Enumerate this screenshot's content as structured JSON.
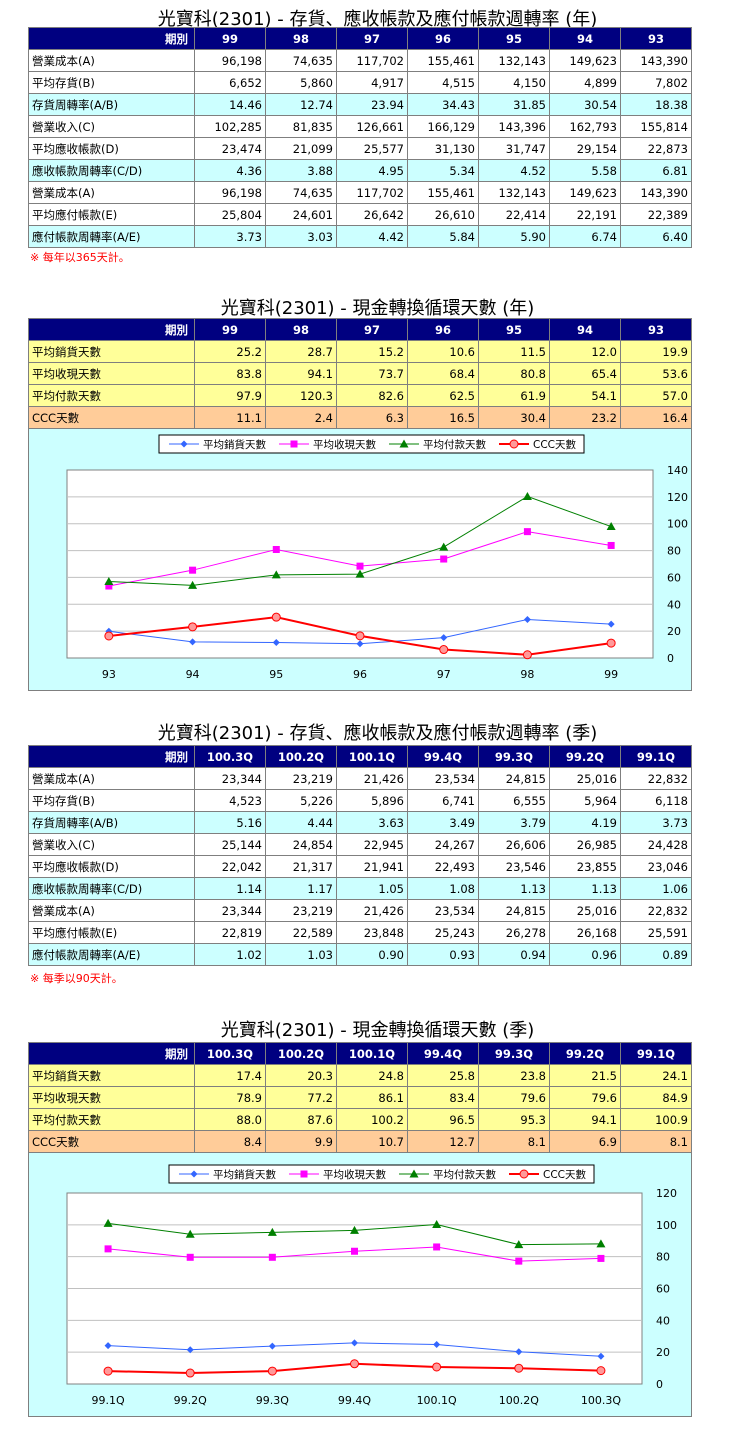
{
  "sections": [
    {
      "title": "光寶科(2301) -  存貨、應收帳款及應付帳款週轉率 (年)",
      "header": [
        "期別",
        "99",
        "98",
        "97",
        "96",
        "95",
        "94",
        "93"
      ],
      "rows": [
        {
          "label": "營業成本(A)",
          "values": [
            "96,198",
            "74,635",
            "117,702",
            "155,461",
            "132,143",
            "149,623",
            "143,390"
          ],
          "color": "white"
        },
        {
          "label": "平均存貨(B)",
          "values": [
            "6,652",
            "5,860",
            "4,917",
            "4,515",
            "4,150",
            "4,899",
            "7,802"
          ],
          "color": "white"
        },
        {
          "label": "存貨周轉率(A/B)",
          "values": [
            "14.46",
            "12.74",
            "23.94",
            "34.43",
            "31.85",
            "30.54",
            "18.38"
          ],
          "color": "cyan"
        },
        {
          "label": "營業收入(C)",
          "values": [
            "102,285",
            "81,835",
            "126,661",
            "166,129",
            "143,396",
            "162,793",
            "155,814"
          ],
          "color": "white"
        },
        {
          "label": "平均應收帳款(D)",
          "values": [
            "23,474",
            "21,099",
            "25,577",
            "31,130",
            "31,747",
            "29,154",
            "22,873"
          ],
          "color": "white"
        },
        {
          "label": "應收帳款周轉率(C/D)",
          "values": [
            "4.36",
            "3.88",
            "4.95",
            "5.34",
            "4.52",
            "5.58",
            "6.81"
          ],
          "color": "cyan"
        },
        {
          "label": "營業成本(A)",
          "values": [
            "96,198",
            "74,635",
            "117,702",
            "155,461",
            "132,143",
            "149,623",
            "143,390"
          ],
          "color": "white"
        },
        {
          "label": "平均應付帳款(E)",
          "values": [
            "25,804",
            "24,601",
            "26,642",
            "26,610",
            "22,414",
            "22,191",
            "22,389"
          ],
          "color": "white"
        },
        {
          "label": "應付帳款周轉率(A/E)",
          "values": [
            "3.73",
            "3.03",
            "4.42",
            "5.84",
            "5.90",
            "6.74",
            "6.40"
          ],
          "color": "cyan"
        }
      ],
      "note": "※ 每年以365天計。"
    },
    {
      "title": "光寶科(2301) -  現金轉換循環天數 (年)",
      "header": [
        "期別",
        "99",
        "98",
        "97",
        "96",
        "95",
        "94",
        "93"
      ],
      "rows": [
        {
          "label": "平均銷貨天數",
          "values": [
            "25.2",
            "28.7",
            "15.2",
            "10.6",
            "11.5",
            "12.0",
            "19.9"
          ],
          "color": "yellow"
        },
        {
          "label": "平均收現天數",
          "values": [
            "83.8",
            "94.1",
            "73.7",
            "68.4",
            "80.8",
            "65.4",
            "53.6"
          ],
          "color": "yellow"
        },
        {
          "label": "平均付款天數",
          "values": [
            "97.9",
            "120.3",
            "82.6",
            "62.5",
            "61.9",
            "54.1",
            "57.0"
          ],
          "color": "yellow"
        },
        {
          "label": "CCC天數",
          "values": [
            "11.1",
            "2.4",
            "6.3",
            "16.5",
            "30.4",
            "23.2",
            "16.4"
          ],
          "color": "orange"
        }
      ]
    },
    {
      "title": "光寶科(2301) -  存貨、應收帳款及應付帳款週轉率 (季)",
      "header": [
        "期別",
        "100.3Q",
        "100.2Q",
        "100.1Q",
        "99.4Q",
        "99.3Q",
        "99.2Q",
        "99.1Q"
      ],
      "rows": [
        {
          "label": "營業成本(A)",
          "values": [
            "23,344",
            "23,219",
            "21,426",
            "23,534",
            "24,815",
            "25,016",
            "22,832"
          ],
          "color": "white"
        },
        {
          "label": "平均存貨(B)",
          "values": [
            "4,523",
            "5,226",
            "5,896",
            "6,741",
            "6,555",
            "5,964",
            "6,118"
          ],
          "color": "white"
        },
        {
          "label": "存貨周轉率(A/B)",
          "values": [
            "5.16",
            "4.44",
            "3.63",
            "3.49",
            "3.79",
            "4.19",
            "3.73"
          ],
          "color": "cyan"
        },
        {
          "label": "營業收入(C)",
          "values": [
            "25,144",
            "24,854",
            "22,945",
            "24,267",
            "26,606",
            "26,985",
            "24,428"
          ],
          "color": "white"
        },
        {
          "label": "平均應收帳款(D)",
          "values": [
            "22,042",
            "21,317",
            "21,941",
            "22,493",
            "23,546",
            "23,855",
            "23,046"
          ],
          "color": "white"
        },
        {
          "label": "應收帳款周轉率(C/D)",
          "values": [
            "1.14",
            "1.17",
            "1.05",
            "1.08",
            "1.13",
            "1.13",
            "1.06"
          ],
          "color": "cyan"
        },
        {
          "label": "營業成本(A)",
          "values": [
            "23,344",
            "23,219",
            "21,426",
            "23,534",
            "24,815",
            "25,016",
            "22,832"
          ],
          "color": "white"
        },
        {
          "label": "平均應付帳款(E)",
          "values": [
            "22,819",
            "22,589",
            "23,848",
            "25,243",
            "26,278",
            "26,168",
            "25,591"
          ],
          "color": "white"
        },
        {
          "label": "應付帳款周轉率(A/E)",
          "values": [
            "1.02",
            "1.03",
            "0.90",
            "0.93",
            "0.94",
            "0.96",
            "0.89"
          ],
          "color": "cyan"
        }
      ],
      "note": "※ 每季以90天計。"
    },
    {
      "title": "光寶科(2301) -  現金轉換循環天數 (季)",
      "header": [
        "期別",
        "100.3Q",
        "100.2Q",
        "100.1Q",
        "99.4Q",
        "99.3Q",
        "99.2Q",
        "99.1Q"
      ],
      "rows": [
        {
          "label": "平均銷貨天數",
          "values": [
            "17.4",
            "20.3",
            "24.8",
            "25.8",
            "23.8",
            "21.5",
            "24.1"
          ],
          "color": "yellow"
        },
        {
          "label": "平均收現天數",
          "values": [
            "78.9",
            "77.2",
            "86.1",
            "83.4",
            "79.6",
            "79.6",
            "84.9"
          ],
          "color": "yellow"
        },
        {
          "label": "平均付款天數",
          "values": [
            "88.0",
            "87.6",
            "100.2",
            "96.5",
            "95.3",
            "94.1",
            "100.9"
          ],
          "color": "yellow"
        },
        {
          "label": "CCC天數",
          "values": [
            "8.4",
            "9.9",
            "10.7",
            "12.7",
            "8.1",
            "6.9",
            "8.1"
          ],
          "color": "orange"
        }
      ]
    }
  ],
  "chart_data": [
    {
      "type": "line",
      "categories": [
        "93",
        "94",
        "95",
        "96",
        "97",
        "98",
        "99"
      ],
      "ylim": [
        0,
        140
      ],
      "yticks": [
        0,
        20,
        40,
        60,
        80,
        100,
        120,
        140
      ],
      "grid": true,
      "legend": "top",
      "series": [
        {
          "name": "平均銷貨天數",
          "color": "#3366ff",
          "marker": "diamond",
          "values": [
            19.9,
            12.0,
            11.5,
            10.6,
            15.2,
            28.7,
            25.2
          ]
        },
        {
          "name": "平均收現天數",
          "color": "#ff00ff",
          "marker": "square",
          "values": [
            53.6,
            65.4,
            80.8,
            68.4,
            73.7,
            94.1,
            83.8
          ]
        },
        {
          "name": "平均付款天數",
          "color": "#008000",
          "marker": "triangle",
          "values": [
            57.0,
            54.1,
            61.9,
            62.5,
            82.6,
            120.3,
            97.9
          ]
        },
        {
          "name": "CCC天數",
          "color": "#ff0000",
          "marker": "circle",
          "values": [
            16.4,
            23.2,
            30.4,
            16.5,
            6.3,
            2.4,
            11.1
          ]
        }
      ]
    },
    {
      "type": "line",
      "categories": [
        "99.1Q",
        "99.2Q",
        "99.3Q",
        "99.4Q",
        "100.1Q",
        "100.2Q",
        "100.3Q"
      ],
      "ylim": [
        0,
        120
      ],
      "yticks": [
        0,
        20,
        40,
        60,
        80,
        100,
        120
      ],
      "grid": true,
      "legend": "top",
      "series": [
        {
          "name": "平均銷貨天數",
          "color": "#3366ff",
          "marker": "diamond",
          "values": [
            24.1,
            21.5,
            23.8,
            25.8,
            24.8,
            20.3,
            17.4
          ]
        },
        {
          "name": "平均收現天數",
          "color": "#ff00ff",
          "marker": "square",
          "values": [
            84.9,
            79.6,
            79.6,
            83.4,
            86.1,
            77.2,
            78.9
          ]
        },
        {
          "name": "平均付款天數",
          "color": "#008000",
          "marker": "triangle",
          "values": [
            100.9,
            94.1,
            95.3,
            96.5,
            100.2,
            87.6,
            88.0
          ]
        },
        {
          "name": "CCC天數",
          "color": "#ff0000",
          "marker": "circle",
          "values": [
            8.1,
            6.9,
            8.1,
            12.7,
            10.7,
            9.9,
            8.4
          ]
        }
      ]
    }
  ]
}
